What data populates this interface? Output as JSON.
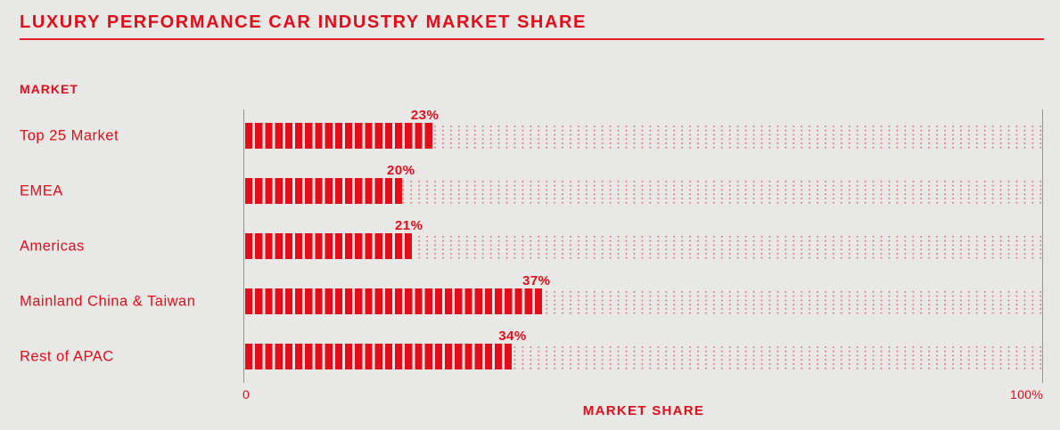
{
  "page": {
    "background_color": "#e8e8e7",
    "accent_color": "#e20d18"
  },
  "chart_data": {
    "type": "bar",
    "orientation": "horizontal",
    "title": "LUXURY PERFORMANCE CAR INDUSTRY MARKET SHARE",
    "ylabel": "MARKET",
    "xlabel": "MARKET SHARE",
    "categories": [
      "Top 25 Market",
      "EMEA",
      "Americas",
      "Mainland China & Taiwan",
      "Rest of APAC"
    ],
    "values": [
      23,
      20,
      21,
      37,
      34
    ],
    "value_labels": [
      "23%",
      "20%",
      "21%",
      "37%",
      "34%"
    ],
    "xlim": [
      0,
      100
    ],
    "x_tick_labels": [
      "0",
      "100%"
    ],
    "bar_color": "#e20d18",
    "bar_style": "segmented-stripes",
    "track_style": "dotted-grid",
    "grid": false,
    "legend": false
  }
}
